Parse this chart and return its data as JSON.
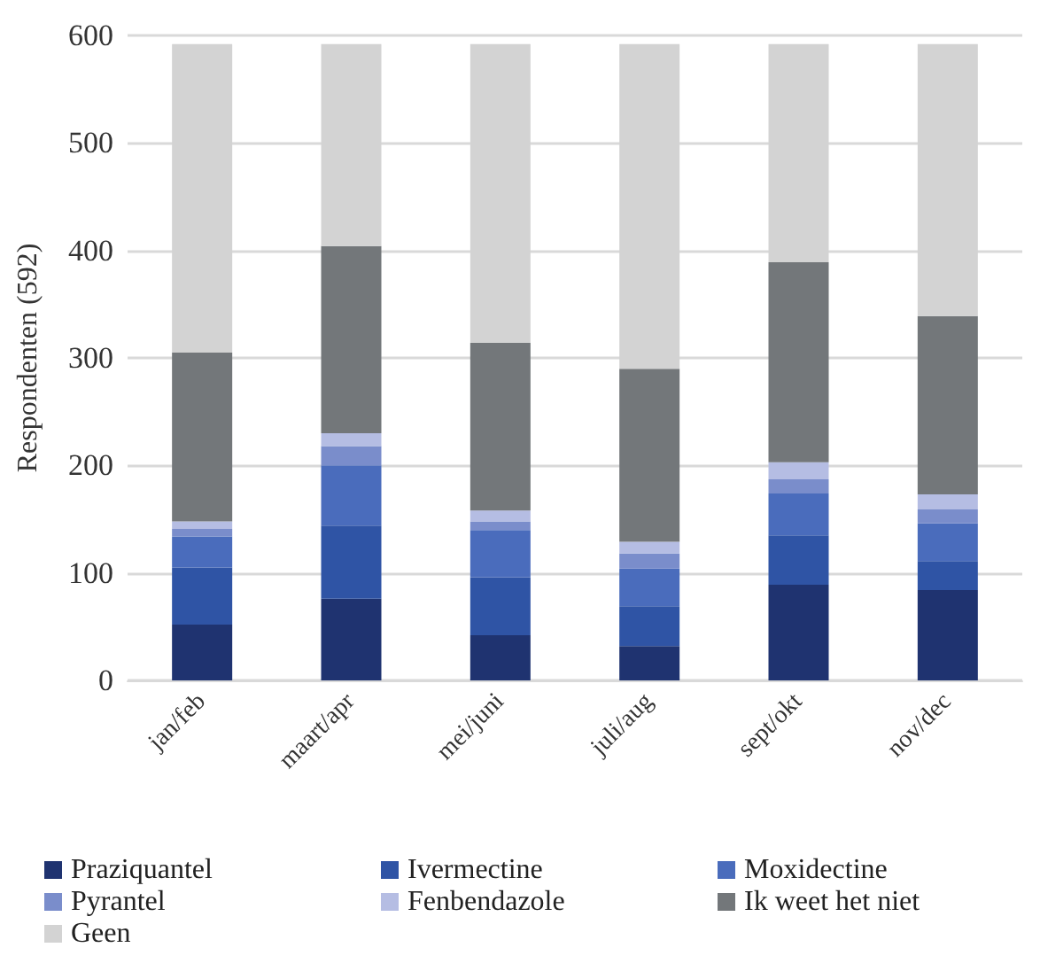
{
  "chart_data": {
    "type": "bar",
    "stacked": true,
    "ylabel": "Respondenten (592)",
    "categories": [
      "jan/feb",
      "maart/apr",
      "mei/juni",
      "juli/aug",
      "sept/okt",
      "nov/dec"
    ],
    "series": [
      {
        "name": "Praziquantel",
        "color": "#1f3370",
        "values": [
          52,
          76,
          42,
          32,
          89,
          84
        ]
      },
      {
        "name": "Ivermectine",
        "color": "#2f54a5",
        "values": [
          53,
          68,
          54,
          37,
          46,
          27
        ]
      },
      {
        "name": "Moxidectine",
        "color": "#4a6cbc",
        "values": [
          29,
          56,
          44,
          35,
          39,
          35
        ]
      },
      {
        "name": "Pyrantel",
        "color": "#7a8dcb",
        "values": [
          7,
          18,
          8,
          14,
          13,
          13
        ]
      },
      {
        "name": "Fenbendazole",
        "color": "#b5bde3",
        "values": [
          7,
          12,
          10,
          11,
          16,
          14
        ]
      },
      {
        "name": "Ik weet het niet",
        "color": "#73777a",
        "values": [
          157,
          174,
          156,
          161,
          186,
          166
        ]
      },
      {
        "name": "Geen",
        "color": "#d3d3d3",
        "values": [
          287,
          188,
          278,
          302,
          203,
          253
        ]
      }
    ],
    "ylim": [
      0,
      600
    ],
    "yticks": [
      0,
      100,
      200,
      300,
      400,
      500,
      600
    ],
    "grid": "y",
    "legend": "bottom"
  }
}
